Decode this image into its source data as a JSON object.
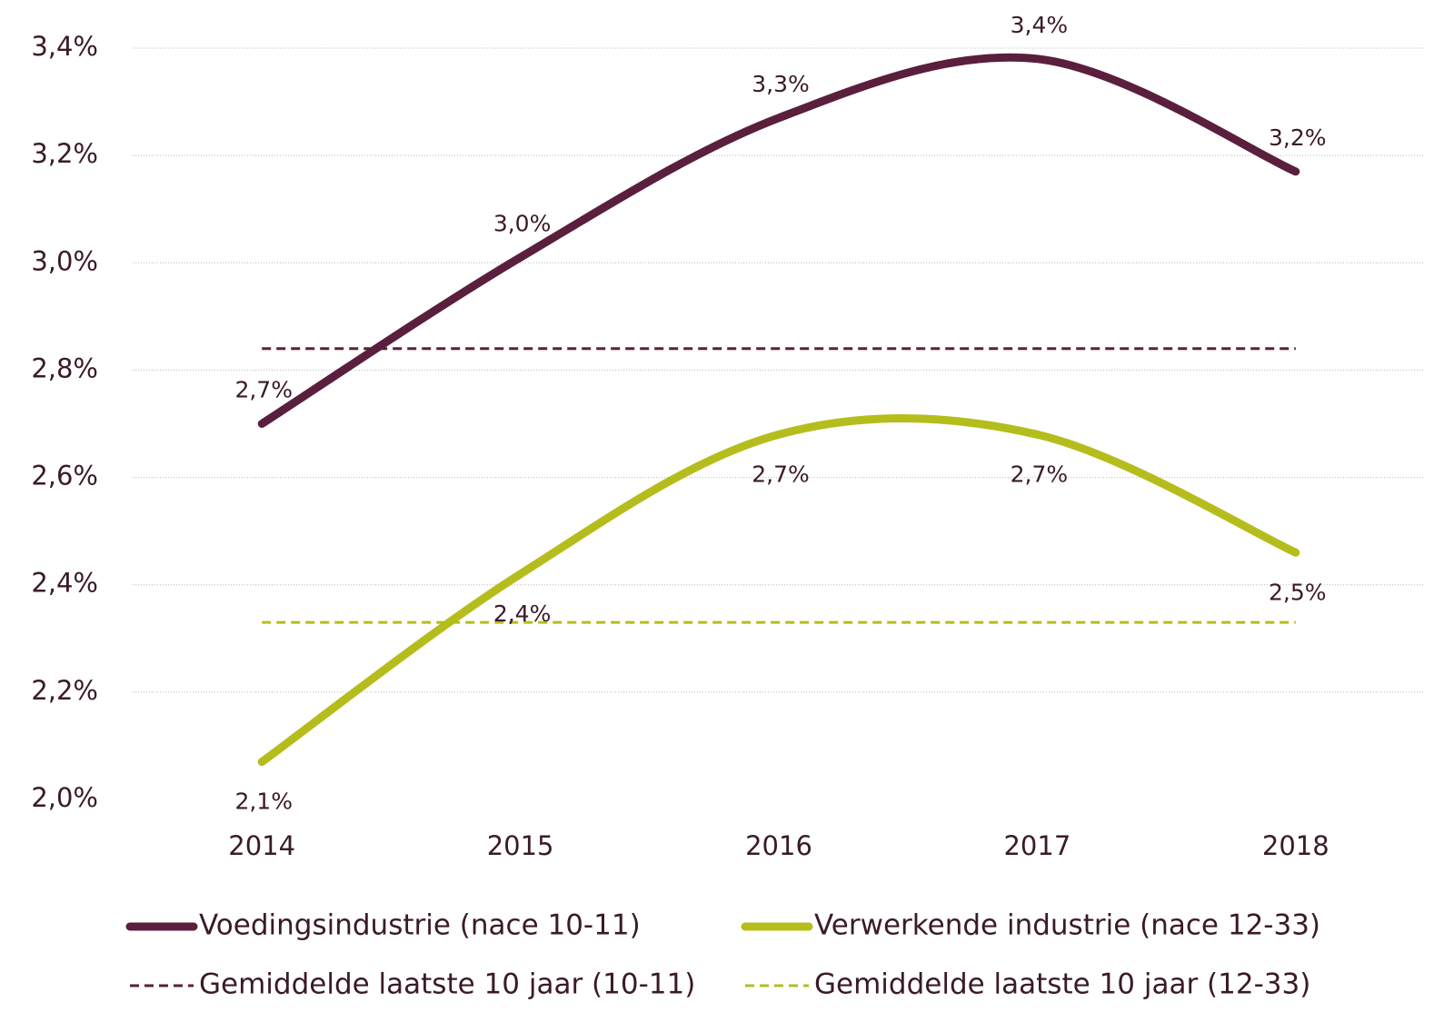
{
  "chart_data": {
    "type": "line",
    "categories": [
      "2014",
      "2015",
      "2016",
      "2017",
      "2018"
    ],
    "series": [
      {
        "name": "Voedingsindustrie (nace 10-11)",
        "color": "#5a1f3d",
        "values": [
          2.7,
          3.01,
          3.27,
          3.38,
          3.17
        ],
        "value_labels": [
          "2,7%",
          "3,0%",
          "3,3%",
          "3,4%",
          "3,2%"
        ],
        "label_position": "above"
      },
      {
        "name": "Verwerkende industrie (nace 12-33)",
        "color": "#b5bd1c",
        "values": [
          2.07,
          2.42,
          2.68,
          2.68,
          2.46
        ],
        "value_labels": [
          "2,1%",
          "2,4%",
          "2,7%",
          "2,7%",
          "2,5%"
        ],
        "label_position": "below"
      }
    ],
    "reference_lines": [
      {
        "name": "Gemiddelde laatste 10 jaar (10-11)",
        "color": "#5a1f3d",
        "value": 2.84,
        "style": "dashed"
      },
      {
        "name": "Gemiddelde laatste 10 jaar (12-33)",
        "color": "#b5bd1c",
        "value": 2.33,
        "style": "dashed"
      }
    ],
    "ylim": [
      2.0,
      3.4
    ],
    "yticks": [
      {
        "value": 2.0,
        "label": "2,0%"
      },
      {
        "value": 2.2,
        "label": "2,2%"
      },
      {
        "value": 2.4,
        "label": "2,4%"
      },
      {
        "value": 2.6,
        "label": "2,6%"
      },
      {
        "value": 2.8,
        "label": "2,8%"
      },
      {
        "value": 3.0,
        "label": "3,0%"
      },
      {
        "value": 3.2,
        "label": "3,2%"
      },
      {
        "value": 3.4,
        "label": "3,4%"
      }
    ],
    "grid": true,
    "smooth": true,
    "legend": "bottom"
  }
}
